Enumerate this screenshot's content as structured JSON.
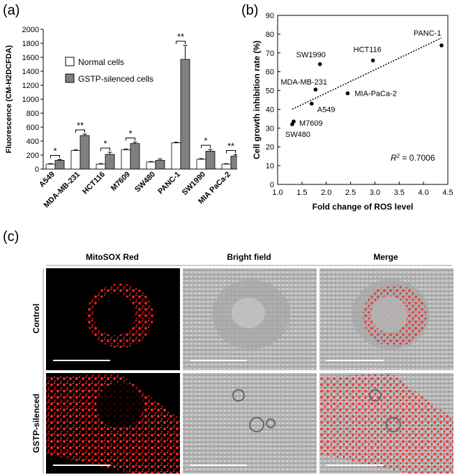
{
  "panels": {
    "a": "(a)",
    "b": "(b)",
    "c": "(c)"
  },
  "chart_data": [
    {
      "type": "bar",
      "ylabel": "Fluorescence (CM-H2DCFDA)",
      "ylim": [
        0,
        2000
      ],
      "yticks": [
        "0",
        "200",
        "400",
        "600",
        "800",
        "1000",
        "1200",
        "1400",
        "1600",
        "1800",
        "2000"
      ],
      "categories": [
        "A549",
        "MDA-MB-231",
        "HCT116",
        "M7609",
        "SW480",
        "PANC-1",
        "SW1990",
        "MIA PaCa-2"
      ],
      "series": [
        {
          "name": "Normal cells",
          "color": "#ffffff",
          "values": [
            70,
            265,
            70,
            275,
            100,
            375,
            140,
            70
          ],
          "errors": [
            8,
            12,
            8,
            12,
            8,
            10,
            10,
            8
          ]
        },
        {
          "name": "GSTP-silenced cells",
          "color": "#808080",
          "values": [
            125,
            480,
            210,
            365,
            125,
            1570,
            255,
            185
          ],
          "errors": [
            10,
            20,
            30,
            20,
            20,
            200,
            25,
            20
          ]
        }
      ],
      "significance": [
        "*",
        "**",
        "*",
        "*",
        "",
        "**",
        "*",
        "**"
      ],
      "legend": "upper-left"
    },
    {
      "type": "scatter",
      "xlabel": "Fold change of ROS level",
      "ylabel": "Cell growth inhibition rate (%)",
      "xlim": [
        1.0,
        4.5
      ],
      "ylim": [
        0,
        90
      ],
      "xticks": [
        "1.0",
        "1.5",
        "2.0",
        "2.5",
        "3.0",
        "3.5",
        "4.0",
        "4.5"
      ],
      "yticks": [
        "0",
        "10",
        "20",
        "30",
        "40",
        "50",
        "60",
        "70",
        "80",
        "90"
      ],
      "points": [
        {
          "label": "PANC-1",
          "x": 4.37,
          "y": 74
        },
        {
          "label": "SW1990",
          "x": 1.87,
          "y": 64
        },
        {
          "label": "HCT116",
          "x": 2.96,
          "y": 66
        },
        {
          "label": "MDA-MB-231",
          "x": 1.78,
          "y": 50.5
        },
        {
          "label": "MIA-PaCa-2",
          "x": 2.44,
          "y": 48.5
        },
        {
          "label": "A549",
          "x": 1.7,
          "y": 43
        },
        {
          "label": "M7609",
          "x": 1.33,
          "y": 33.5
        },
        {
          "label": "SW480",
          "x": 1.3,
          "y": 32
        }
      ],
      "trendline": {
        "x": [
          1.3,
          4.37
        ],
        "y": [
          40,
          78
        ]
      },
      "r2_prefix": "R",
      "r2_sup": "2",
      "r2_value": " = 0.7006"
    }
  ],
  "micrographs": {
    "columns": [
      "MitoSOX Red",
      "Bright field",
      "Merge"
    ],
    "rows": [
      "Control",
      "GSTP-silenced"
    ]
  }
}
